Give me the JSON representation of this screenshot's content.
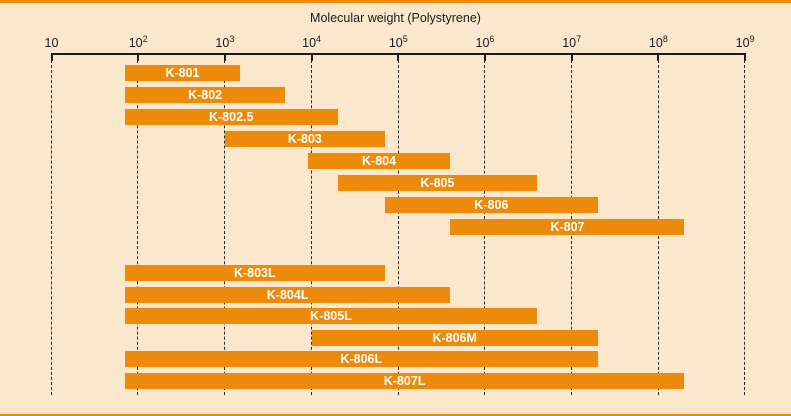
{
  "chart_data": {
    "type": "bar",
    "variant": "horizontal-range-bars-log-x",
    "title": "Molecular weight (Polystyrene)",
    "x_axis": {
      "scale": "log10",
      "min": 10,
      "max": 1000000000,
      "tick_label_format": "10^n",
      "tick_exponents": [
        1,
        2,
        3,
        4,
        5,
        6,
        7,
        8,
        9
      ],
      "grid": "dashed-vertical"
    },
    "bars": [
      {
        "label": "K-801",
        "min": 70,
        "max": 1500,
        "group": 1
      },
      {
        "label": "K-802",
        "min": 70,
        "max": 5000,
        "group": 1
      },
      {
        "label": "K-802.5",
        "min": 70,
        "max": 20000,
        "group": 1
      },
      {
        "label": "K-803",
        "min": 1000,
        "max": 70000,
        "group": 1
      },
      {
        "label": "K-804",
        "min": 9000,
        "max": 400000,
        "group": 1
      },
      {
        "label": "K-805",
        "min": 20000,
        "max": 4000000,
        "group": 1
      },
      {
        "label": "K-806",
        "min": 70000,
        "max": 20000000,
        "group": 1
      },
      {
        "label": "K-807",
        "min": 400000,
        "max": 200000000,
        "group": 1
      },
      {
        "label": "K-803L",
        "min": 70,
        "max": 70000,
        "group": 2
      },
      {
        "label": "K-804L",
        "min": 70,
        "max": 400000,
        "group": 2
      },
      {
        "label": "K-805L",
        "min": 70,
        "max": 4000000,
        "group": 2
      },
      {
        "label": "K-806M",
        "min": 10000,
        "max": 20000000,
        "group": 2
      },
      {
        "label": "K-806L",
        "min": 70,
        "max": 20000000,
        "group": 2
      },
      {
        "label": "K-807L",
        "min": 70,
        "max": 200000000,
        "group": 2
      }
    ],
    "legend": null,
    "colors": {
      "bar": "#EE8A0A",
      "bar_label": "#FFFFFF",
      "axis": "#1A1A1A",
      "background": "#FAE7CC",
      "frame": "#EE8A00"
    }
  }
}
